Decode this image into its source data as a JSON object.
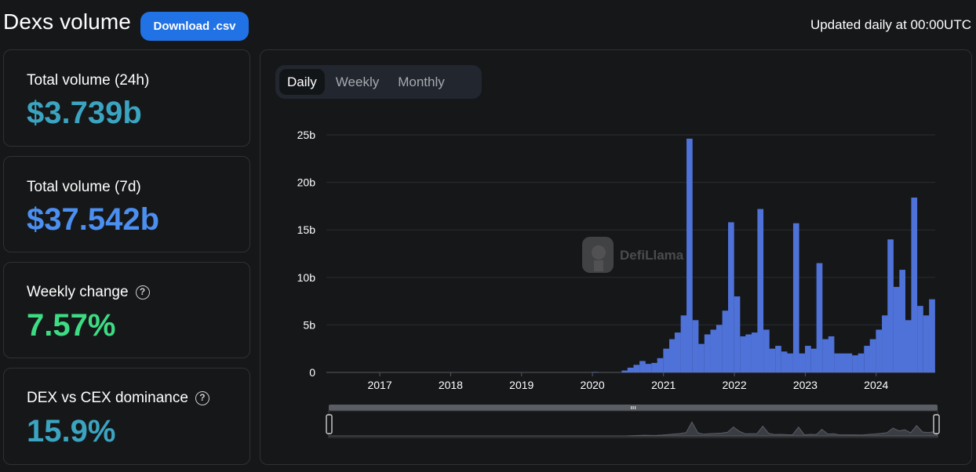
{
  "header": {
    "title": "Dexs volume",
    "download_label": "Download .csv",
    "updated_text": "Updated daily at 00:00UTC"
  },
  "cards": [
    {
      "label": "Total volume (24h)",
      "value": "$3.739b",
      "color": "#3ba4c0",
      "help": false
    },
    {
      "label": "Total volume (7d)",
      "value": "$37.542b",
      "color": "#4b8ff0",
      "help": false
    },
    {
      "label": "Weekly change",
      "value": "7.57%",
      "color": "#3ddc84",
      "help": true
    },
    {
      "label": "DEX vs CEX dominance",
      "value": "15.9%",
      "color": "#3ba4c0",
      "help": true
    }
  ],
  "tabs": [
    {
      "label": "Daily",
      "active": true
    },
    {
      "label": "Weekly",
      "active": false
    },
    {
      "label": "Monthly",
      "active": false
    }
  ],
  "watermark": "DefiLlama",
  "colors": {
    "bar": "#4f72d9",
    "grid": "#2a2c30",
    "axis_text": "#ffffff",
    "background": "#161719"
  },
  "chart_data": {
    "type": "bar",
    "title": "",
    "xlabel": "",
    "ylabel": "",
    "x_range": [
      "2016-04-01",
      "2024-10-31"
    ],
    "ylim": [
      0,
      25
    ],
    "y_unit": "b",
    "y_ticks": [
      "0",
      "5b",
      "10b",
      "15b",
      "20b",
      "25b"
    ],
    "x_ticks": [
      "2017",
      "2018",
      "2019",
      "2020",
      "2021",
      "2022",
      "2023",
      "2024"
    ],
    "grid": true,
    "series": [
      {
        "values_description": "daily DEX volume in billions USD, monthly-sampled envelope",
        "x": [
          "2016-06",
          "2017-01",
          "2017-06",
          "2018-01",
          "2018-06",
          "2019-01",
          "2019-06",
          "2020-01",
          "2020-06",
          "2020-07",
          "2020-08",
          "2020-09",
          "2020-10",
          "2020-11",
          "2020-12",
          "2021-01",
          "2021-02",
          "2021-03",
          "2021-04",
          "2021-05",
          "2021-06",
          "2021-07",
          "2021-08",
          "2021-09",
          "2021-10",
          "2021-11",
          "2021-12",
          "2022-01",
          "2022-02",
          "2022-03",
          "2022-04",
          "2022-05",
          "2022-06",
          "2022-07",
          "2022-08",
          "2022-09",
          "2022-10",
          "2022-11",
          "2022-12",
          "2023-01",
          "2023-02",
          "2023-03",
          "2023-04",
          "2023-05",
          "2023-06",
          "2023-07",
          "2023-08",
          "2023-09",
          "2023-10",
          "2023-11",
          "2023-12",
          "2024-01",
          "2024-02",
          "2024-03",
          "2024-04",
          "2024-05",
          "2024-06",
          "2024-07",
          "2024-08",
          "2024-09",
          "2024-10"
        ],
        "values": [
          0,
          0,
          0,
          0,
          0,
          0,
          0,
          0.05,
          0.2,
          0.5,
          0.8,
          1.2,
          0.9,
          1.0,
          1.5,
          2.5,
          3.5,
          4.2,
          6.0,
          24.6,
          5.5,
          3.0,
          4.0,
          4.5,
          5.0,
          6.5,
          15.8,
          8.0,
          3.8,
          4.0,
          4.2,
          17.2,
          4.5,
          2.5,
          2.8,
          2.2,
          2.0,
          15.7,
          2.0,
          2.8,
          2.5,
          11.5,
          3.5,
          3.8,
          2.0,
          2.0,
          2.0,
          1.8,
          2.0,
          2.8,
          3.5,
          4.5,
          6.0,
          14.0,
          9.0,
          10.8,
          5.5,
          18.4,
          7.0,
          6.0,
          7.7
        ]
      }
    ]
  }
}
